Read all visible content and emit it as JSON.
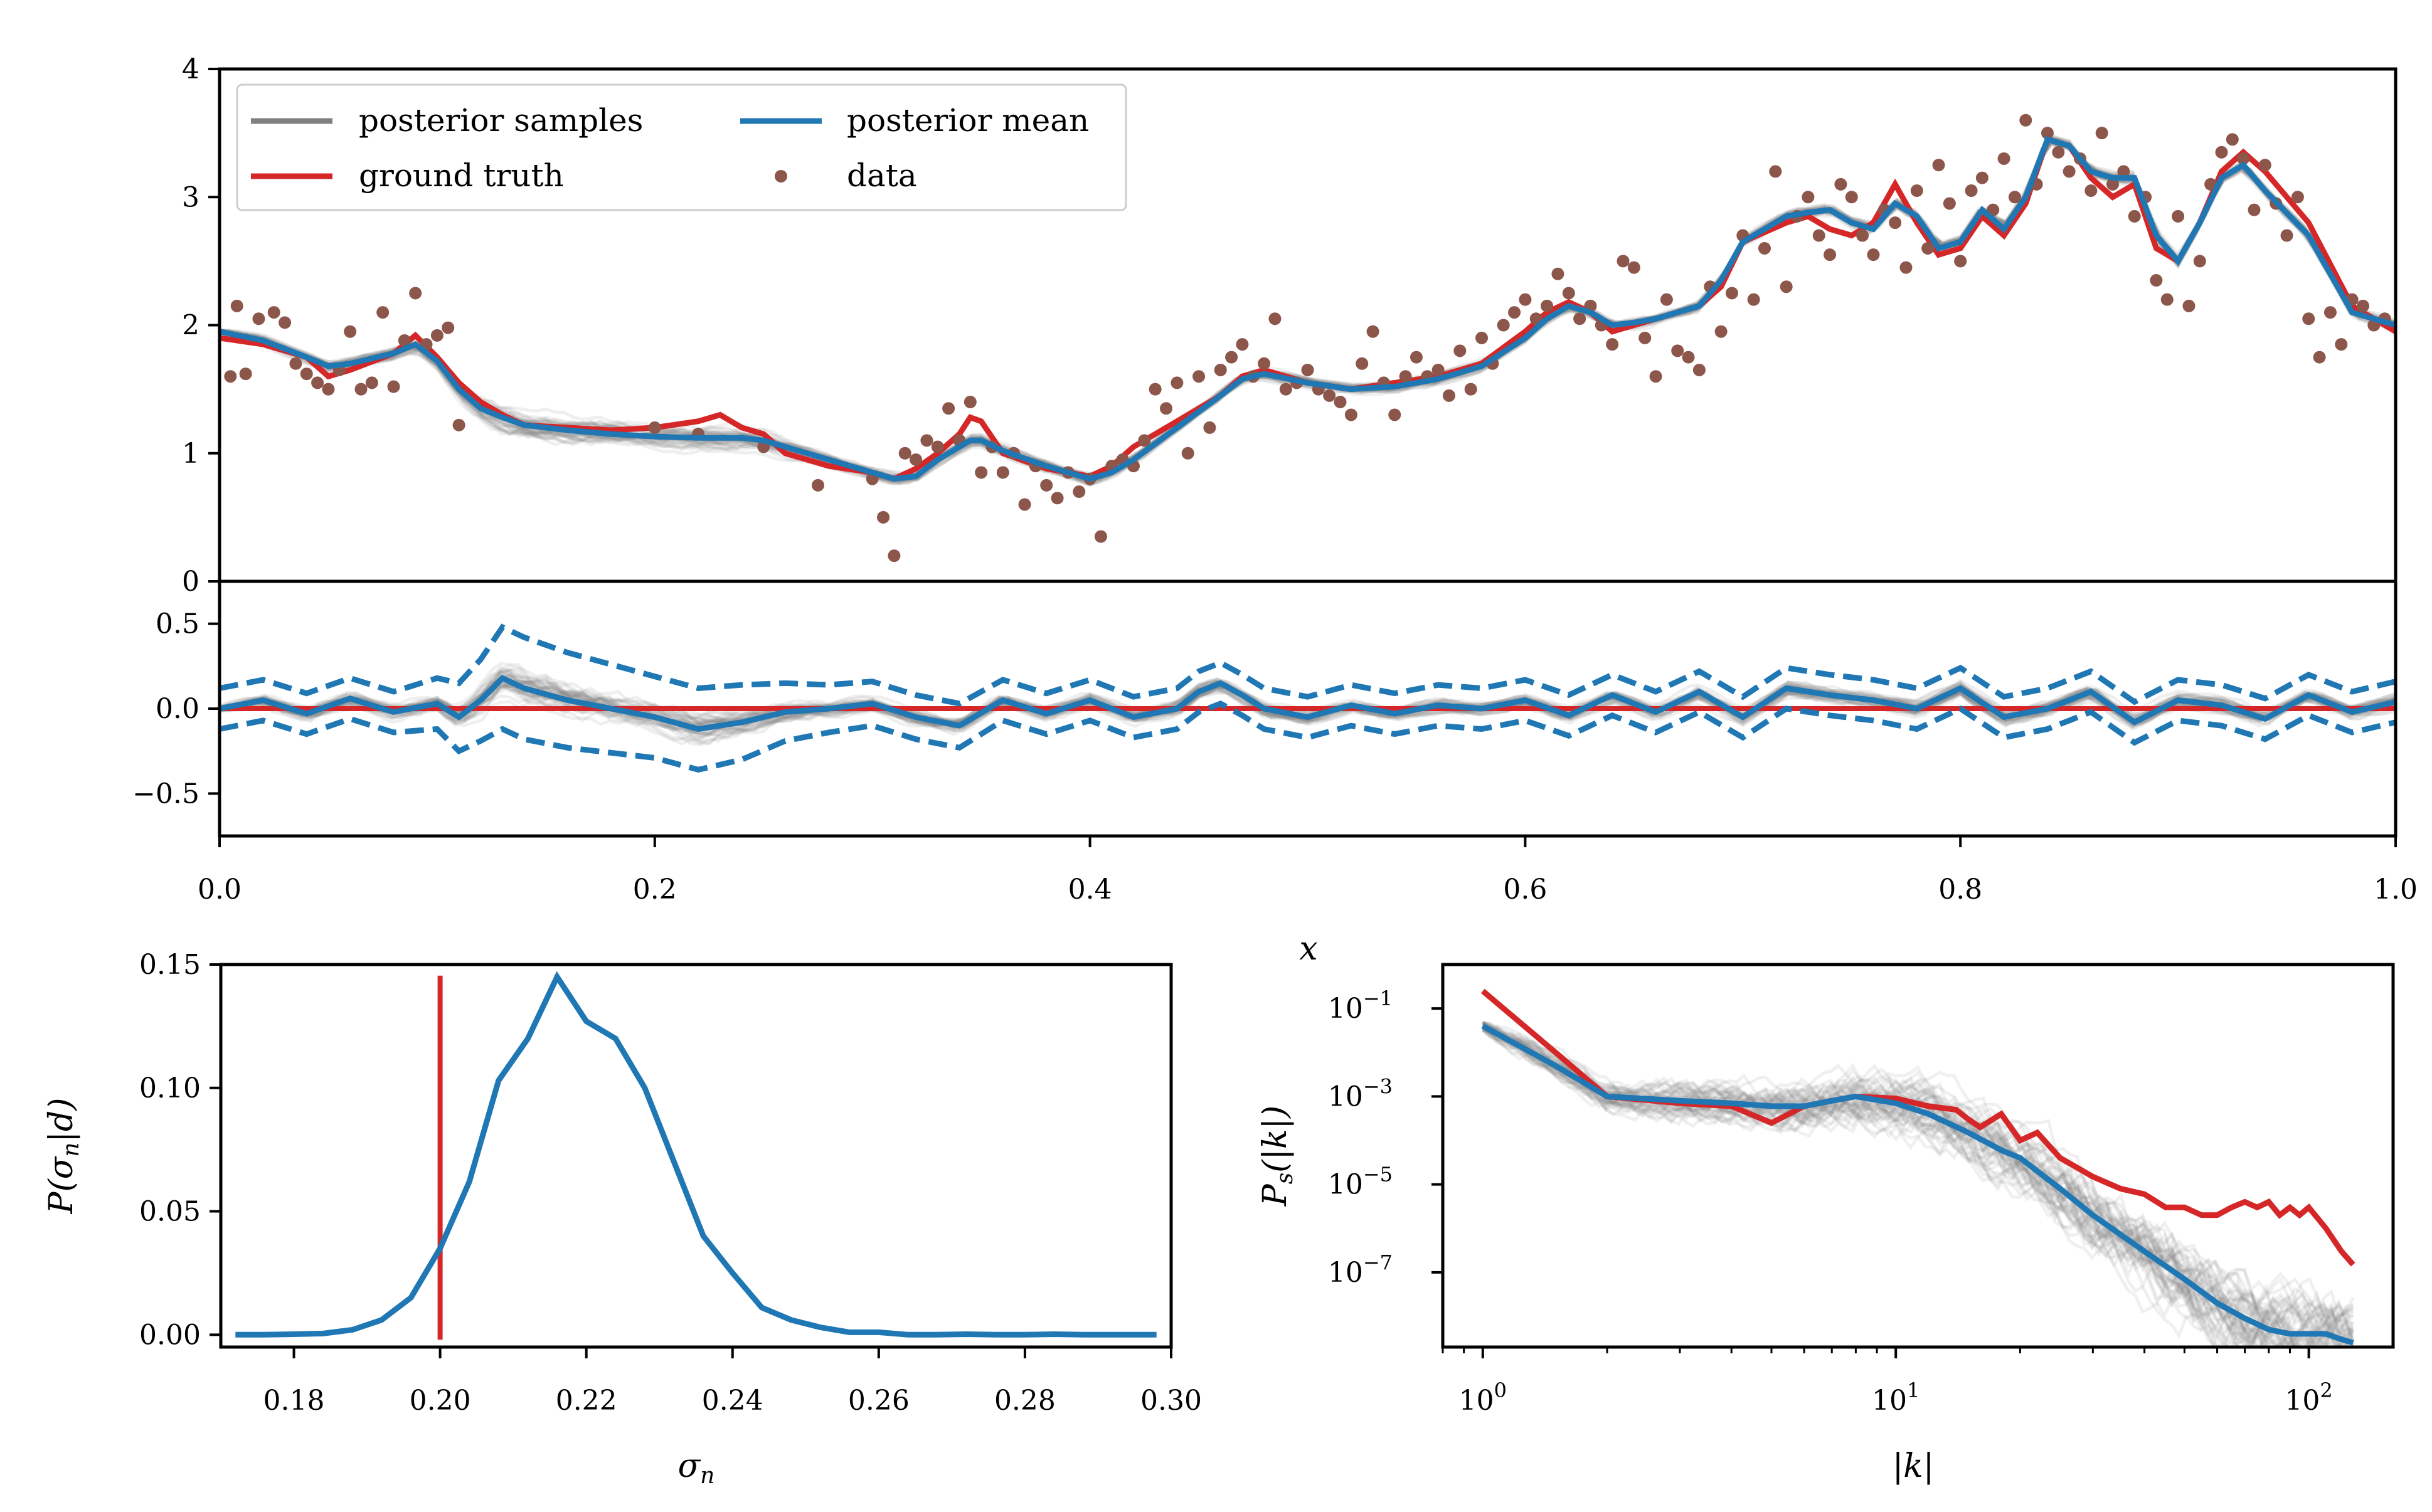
{
  "colors": {
    "samples": "#808080",
    "truth": "#d62728",
    "mean": "#1f77b4",
    "data": "#8c564b"
  },
  "legend": {
    "samples": "posterior samples",
    "truth": "ground truth",
    "mean": "posterior mean",
    "data": "data"
  },
  "chart_data": [
    {
      "type": "line",
      "panel": "top",
      "xlim": [
        0,
        1
      ],
      "ylim": [
        0,
        4
      ],
      "yticks": [
        "0",
        "1",
        "2",
        "3",
        "4"
      ],
      "legend_position": "upper-left",
      "ground_truth": {
        "x": [
          0,
          0.02,
          0.04,
          0.05,
          0.06,
          0.08,
          0.09,
          0.1,
          0.11,
          0.12,
          0.13,
          0.14,
          0.16,
          0.18,
          0.2,
          0.22,
          0.23,
          0.24,
          0.25,
          0.26,
          0.28,
          0.3,
          0.31,
          0.32,
          0.33,
          0.34,
          0.345,
          0.35,
          0.36,
          0.38,
          0.4,
          0.41,
          0.42,
          0.44,
          0.46,
          0.47,
          0.48,
          0.5,
          0.52,
          0.54,
          0.56,
          0.58,
          0.6,
          0.61,
          0.62,
          0.63,
          0.64,
          0.65,
          0.66,
          0.68,
          0.69,
          0.7,
          0.72,
          0.73,
          0.74,
          0.75,
          0.76,
          0.77,
          0.78,
          0.79,
          0.8,
          0.81,
          0.82,
          0.83,
          0.84,
          0.85,
          0.86,
          0.87,
          0.88,
          0.89,
          0.9,
          0.91,
          0.92,
          0.93,
          0.94,
          0.96,
          0.98,
          1.0
        ],
        "y": [
          1.9,
          1.85,
          1.75,
          1.6,
          1.65,
          1.78,
          1.92,
          1.75,
          1.55,
          1.4,
          1.3,
          1.22,
          1.2,
          1.18,
          1.2,
          1.25,
          1.3,
          1.2,
          1.15,
          1.0,
          0.9,
          0.85,
          0.8,
          0.88,
          1.0,
          1.15,
          1.28,
          1.25,
          1.0,
          0.88,
          0.82,
          0.9,
          1.05,
          1.25,
          1.45,
          1.6,
          1.65,
          1.55,
          1.5,
          1.55,
          1.6,
          1.7,
          1.95,
          2.1,
          2.18,
          2.1,
          1.95,
          2.0,
          2.05,
          2.15,
          2.3,
          2.65,
          2.8,
          2.85,
          2.75,
          2.7,
          2.8,
          3.1,
          2.8,
          2.55,
          2.6,
          2.85,
          2.7,
          2.95,
          3.45,
          3.4,
          3.15,
          3.0,
          3.1,
          2.6,
          2.5,
          2.8,
          3.2,
          3.35,
          3.2,
          2.8,
          2.15,
          1.95
        ]
      },
      "posterior_mean": {
        "x": [
          0,
          0.02,
          0.04,
          0.05,
          0.06,
          0.08,
          0.09,
          0.1,
          0.11,
          0.12,
          0.13,
          0.14,
          0.16,
          0.18,
          0.2,
          0.22,
          0.23,
          0.24,
          0.25,
          0.26,
          0.28,
          0.3,
          0.31,
          0.32,
          0.33,
          0.34,
          0.345,
          0.35,
          0.36,
          0.38,
          0.4,
          0.41,
          0.42,
          0.44,
          0.46,
          0.47,
          0.48,
          0.5,
          0.52,
          0.54,
          0.56,
          0.58,
          0.6,
          0.61,
          0.62,
          0.63,
          0.64,
          0.65,
          0.66,
          0.68,
          0.69,
          0.7,
          0.72,
          0.73,
          0.74,
          0.75,
          0.76,
          0.77,
          0.78,
          0.79,
          0.8,
          0.81,
          0.82,
          0.83,
          0.84,
          0.85,
          0.86,
          0.87,
          0.88,
          0.89,
          0.9,
          0.91,
          0.92,
          0.93,
          0.94,
          0.96,
          0.98,
          1.0
        ],
        "y": [
          1.95,
          1.88,
          1.75,
          1.68,
          1.7,
          1.78,
          1.85,
          1.72,
          1.5,
          1.35,
          1.28,
          1.22,
          1.18,
          1.15,
          1.13,
          1.12,
          1.12,
          1.12,
          1.1,
          1.05,
          0.95,
          0.85,
          0.8,
          0.82,
          0.95,
          1.05,
          1.1,
          1.1,
          1.02,
          0.9,
          0.8,
          0.85,
          0.95,
          1.2,
          1.45,
          1.58,
          1.62,
          1.55,
          1.5,
          1.52,
          1.58,
          1.68,
          1.9,
          2.05,
          2.15,
          2.1,
          2.0,
          2.02,
          2.05,
          2.15,
          2.35,
          2.65,
          2.85,
          2.88,
          2.9,
          2.8,
          2.75,
          2.95,
          2.85,
          2.6,
          2.65,
          2.9,
          2.75,
          3.0,
          3.45,
          3.4,
          3.2,
          3.15,
          3.15,
          2.7,
          2.5,
          2.8,
          3.15,
          3.25,
          3.05,
          2.7,
          2.1,
          2.0
        ]
      },
      "data_points": {
        "x": [
          0.005,
          0.008,
          0.012,
          0.018,
          0.025,
          0.03,
          0.035,
          0.04,
          0.045,
          0.05,
          0.055,
          0.06,
          0.065,
          0.07,
          0.075,
          0.08,
          0.085,
          0.09,
          0.095,
          0.1,
          0.105,
          0.11,
          0.2,
          0.22,
          0.25,
          0.275,
          0.3,
          0.305,
          0.31,
          0.315,
          0.32,
          0.325,
          0.33,
          0.335,
          0.34,
          0.345,
          0.35,
          0.355,
          0.36,
          0.365,
          0.37,
          0.375,
          0.38,
          0.385,
          0.39,
          0.395,
          0.4,
          0.405,
          0.41,
          0.415,
          0.42,
          0.425,
          0.43,
          0.435,
          0.44,
          0.445,
          0.45,
          0.455,
          0.46,
          0.465,
          0.47,
          0.475,
          0.48,
          0.485,
          0.49,
          0.495,
          0.5,
          0.505,
          0.51,
          0.515,
          0.52,
          0.525,
          0.53,
          0.535,
          0.54,
          0.545,
          0.55,
          0.555,
          0.56,
          0.565,
          0.57,
          0.575,
          0.58,
          0.585,
          0.59,
          0.595,
          0.6,
          0.605,
          0.61,
          0.615,
          0.62,
          0.625,
          0.63,
          0.635,
          0.64,
          0.645,
          0.65,
          0.655,
          0.66,
          0.665,
          0.67,
          0.675,
          0.68,
          0.685,
          0.69,
          0.695,
          0.7,
          0.705,
          0.71,
          0.715,
          0.72,
          0.725,
          0.73,
          0.735,
          0.74,
          0.745,
          0.75,
          0.755,
          0.76,
          0.765,
          0.77,
          0.775,
          0.78,
          0.785,
          0.79,
          0.795,
          0.8,
          0.805,
          0.81,
          0.815,
          0.82,
          0.825,
          0.83,
          0.835,
          0.84,
          0.845,
          0.85,
          0.855,
          0.86,
          0.865,
          0.87,
          0.875,
          0.88,
          0.885,
          0.89,
          0.895,
          0.9,
          0.905,
          0.91,
          0.915,
          0.92,
          0.925,
          0.93,
          0.935,
          0.94,
          0.945,
          0.95,
          0.955,
          0.96,
          0.965,
          0.97,
          0.975,
          0.98,
          0.985,
          0.99,
          0.995
        ],
        "y": [
          1.6,
          2.15,
          1.62,
          2.05,
          2.1,
          2.02,
          1.7,
          1.62,
          1.55,
          1.5,
          1.65,
          1.95,
          1.5,
          1.55,
          2.1,
          1.52,
          1.88,
          2.25,
          1.85,
          1.92,
          1.98,
          1.22,
          1.2,
          1.15,
          1.05,
          0.75,
          0.8,
          0.5,
          0.2,
          1.0,
          0.95,
          1.1,
          1.05,
          1.35,
          1.1,
          1.4,
          0.85,
          1.05,
          0.85,
          1.0,
          0.6,
          0.9,
          0.75,
          0.65,
          0.85,
          0.7,
          0.8,
          0.35,
          0.9,
          0.95,
          0.9,
          1.1,
          1.5,
          1.35,
          1.55,
          1.0,
          1.6,
          1.2,
          1.65,
          1.75,
          1.85,
          1.6,
          1.7,
          2.05,
          1.5,
          1.55,
          1.65,
          1.5,
          1.45,
          1.4,
          1.3,
          1.7,
          1.95,
          1.55,
          1.3,
          1.6,
          1.75,
          1.6,
          1.65,
          1.45,
          1.8,
          1.5,
          1.9,
          1.7,
          2.0,
          2.1,
          2.2,
          2.05,
          2.15,
          2.4,
          2.25,
          2.05,
          2.15,
          2.0,
          1.85,
          2.5,
          2.45,
          1.9,
          1.6,
          2.2,
          1.8,
          1.75,
          1.65,
          2.3,
          1.95,
          2.25,
          2.7,
          2.2,
          2.6,
          3.2,
          2.3,
          2.85,
          3.0,
          2.7,
          2.55,
          3.1,
          3.0,
          2.7,
          2.55,
          2.9,
          2.8,
          2.45,
          3.05,
          2.6,
          3.25,
          2.95,
          2.5,
          3.05,
          3.15,
          2.9,
          3.3,
          3.0,
          3.6,
          3.1,
          3.5,
          3.35,
          3.2,
          3.3,
          3.05,
          3.5,
          3.1,
          3.2,
          2.85,
          3.0,
          2.35,
          2.2,
          2.85,
          2.15,
          2.5,
          3.1,
          3.35,
          3.45,
          3.3,
          2.9,
          3.25,
          2.95,
          2.7,
          3.0,
          2.05,
          1.75,
          2.1,
          1.85,
          2.2,
          2.15,
          2.0,
          2.05
        ]
      }
    },
    {
      "type": "line",
      "panel": "residual",
      "xlim": [
        0,
        1
      ],
      "ylim": [
        -0.75,
        0.75
      ],
      "yticks": [
        "0.5",
        "0.0",
        "−0.5"
      ],
      "xticks": [
        "0.0",
        "0.2",
        "0.4",
        "0.6",
        "0.8",
        "1.0"
      ],
      "xlabel": "x",
      "ground_truth_y": 0.0,
      "mean_residual": {
        "x": [
          0,
          0.02,
          0.04,
          0.06,
          0.08,
          0.1,
          0.11,
          0.12,
          0.13,
          0.14,
          0.16,
          0.18,
          0.2,
          0.22,
          0.24,
          0.26,
          0.28,
          0.3,
          0.32,
          0.34,
          0.36,
          0.38,
          0.4,
          0.42,
          0.44,
          0.45,
          0.46,
          0.47,
          0.48,
          0.5,
          0.52,
          0.54,
          0.56,
          0.58,
          0.6,
          0.62,
          0.64,
          0.66,
          0.68,
          0.7,
          0.72,
          0.74,
          0.76,
          0.78,
          0.8,
          0.82,
          0.84,
          0.86,
          0.88,
          0.9,
          0.92,
          0.94,
          0.96,
          0.98,
          1.0
        ],
        "y": [
          0.0,
          0.05,
          -0.03,
          0.06,
          -0.02,
          0.03,
          -0.05,
          0.05,
          0.18,
          0.12,
          0.05,
          0.0,
          -0.05,
          -0.12,
          -0.08,
          -0.02,
          0.0,
          0.03,
          -0.05,
          -0.1,
          0.05,
          -0.03,
          0.05,
          -0.05,
          0.0,
          0.1,
          0.15,
          0.08,
          0.0,
          -0.05,
          0.02,
          -0.03,
          0.02,
          0.0,
          0.05,
          -0.04,
          0.08,
          -0.02,
          0.1,
          -0.05,
          0.12,
          0.08,
          0.05,
          0.0,
          0.12,
          -0.05,
          0.0,
          0.1,
          -0.08,
          0.05,
          0.02,
          -0.06,
          0.08,
          -0.02,
          0.04
        ]
      },
      "band_half_width": [
        0.12,
        0.12,
        0.12,
        0.12,
        0.12,
        0.15,
        0.2,
        0.24,
        0.3,
        0.3,
        0.28,
        0.26,
        0.24,
        0.24,
        0.22,
        0.17,
        0.14,
        0.13,
        0.13,
        0.13,
        0.12,
        0.12,
        0.12,
        0.12,
        0.12,
        0.12,
        0.12,
        0.12,
        0.12,
        0.12,
        0.12,
        0.12,
        0.12,
        0.12,
        0.12,
        0.12,
        0.12,
        0.12,
        0.12,
        0.12,
        0.12,
        0.12,
        0.12,
        0.12,
        0.12,
        0.12,
        0.12,
        0.12,
        0.12,
        0.12,
        0.12,
        0.12,
        0.12,
        0.12,
        0.12
      ]
    },
    {
      "type": "line",
      "panel": "noise-posterior",
      "xlabel": "σ_n",
      "ylabel": "P(σ_n|d)",
      "xlim": [
        0.17,
        0.3
      ],
      "ylim": [
        -0.005,
        0.15
      ],
      "xticks": [
        "0.18",
        "0.20",
        "0.22",
        "0.24",
        "0.26",
        "0.28",
        "0.30"
      ],
      "yticks": [
        "0.00",
        "0.05",
        "0.10",
        "0.15"
      ],
      "truth_x": 0.2,
      "x": [
        0.172,
        0.176,
        0.18,
        0.184,
        0.188,
        0.192,
        0.196,
        0.2,
        0.204,
        0.208,
        0.212,
        0.216,
        0.22,
        0.224,
        0.228,
        0.232,
        0.236,
        0.24,
        0.244,
        0.248,
        0.252,
        0.256,
        0.26,
        0.264,
        0.268,
        0.272,
        0.276,
        0.28,
        0.284,
        0.288,
        0.292,
        0.298
      ],
      "y": [
        0.0,
        0.0,
        0.0002,
        0.0005,
        0.002,
        0.006,
        0.015,
        0.035,
        0.062,
        0.103,
        0.12,
        0.145,
        0.127,
        0.12,
        0.1,
        0.07,
        0.04,
        0.025,
        0.011,
        0.006,
        0.003,
        0.001,
        0.001,
        0.0,
        0.0,
        0.0002,
        0.0,
        0.0,
        0.0002,
        0.0,
        0.0,
        0.0
      ]
    },
    {
      "type": "line",
      "panel": "power-spectrum",
      "xlabel": "|k|",
      "ylabel": "P_s(|k|)",
      "log_x": true,
      "log_y": true,
      "xlim": [
        0.8,
        160
      ],
      "ylim": [
        2e-09,
        1
      ],
      "xticks": [
        "10^0",
        "10^1",
        "10^2"
      ],
      "yticks": [
        "10^-1",
        "10^-3",
        "10^-5",
        "10^-7"
      ],
      "ground_truth": {
        "k": [
          1,
          1.5,
          2,
          3,
          4,
          5,
          6,
          7,
          8,
          10,
          12,
          14,
          15,
          16,
          18,
          20,
          22,
          25,
          30,
          35,
          40,
          45,
          50,
          55,
          60,
          65,
          70,
          75,
          80,
          85,
          90,
          95,
          100,
          110,
          120,
          128
        ],
        "p": [
          0.25,
          0.01,
          0.001,
          0.0007,
          0.0006,
          0.00025,
          0.0006,
          0.0008,
          0.001,
          0.0009,
          0.0006,
          0.0005,
          0.0003,
          0.0002,
          0.0004,
          0.0001,
          0.00015,
          4e-05,
          1.5e-05,
          8e-06,
          6e-06,
          3e-06,
          3e-06,
          2e-06,
          2e-06,
          3e-06,
          4e-06,
          3e-06,
          4e-06,
          2e-06,
          3e-06,
          2e-06,
          3e-06,
          1e-06,
          3e-07,
          1.5e-07
        ]
      },
      "posterior_mean": {
        "k": [
          1,
          1.5,
          2,
          3,
          4,
          5,
          6,
          7,
          8,
          10,
          12,
          15,
          18,
          20,
          25,
          30,
          40,
          50,
          60,
          70,
          80,
          90,
          100,
          110,
          120,
          128
        ],
        "p": [
          0.04,
          0.005,
          0.001,
          0.0008,
          0.0007,
          0.0006,
          0.0006,
          0.0008,
          0.001,
          0.0007,
          0.0004,
          0.00015,
          6e-05,
          4e-05,
          8e-06,
          2e-06,
          3e-07,
          7e-08,
          2e-08,
          9e-09,
          5e-09,
          4e-09,
          4e-09,
          4e-09,
          3e-09,
          2.5e-09
        ]
      }
    }
  ]
}
